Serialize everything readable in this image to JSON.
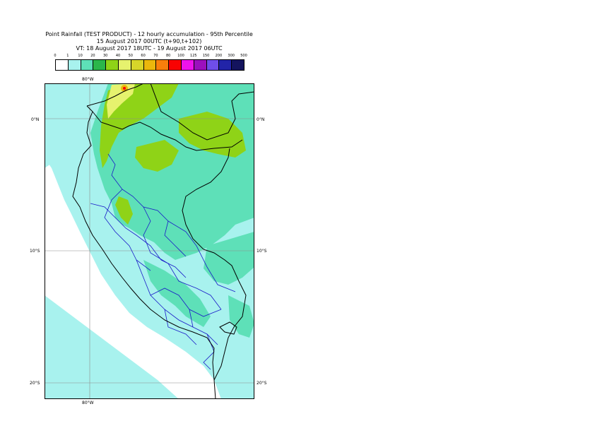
{
  "title_line1": "Point Rainfall (TEST PRODUCT) - 12 hourly accumulation - 95th Percentile",
  "title_line2": "15 August 2017 00UTC (t+90,t+102)",
  "title_line3": "VT: 18 August 2017 18UTC - 19 August 2017 06UTC",
  "legend": {
    "labels": [
      "0",
      "1",
      "10",
      "20",
      "30",
      "40",
      "50",
      "60",
      "70",
      "80",
      "100",
      "125",
      "150",
      "200",
      "300",
      "500"
    ],
    "colors": [
      "#ffffff",
      "#a8f2ee",
      "#5ee0b8",
      "#2bb64a",
      "#8fd317",
      "#e6f26e",
      "#d7d52a",
      "#ebb70c",
      "#f87f0c",
      "#f90202",
      "#ee13ec",
      "#9b10bd",
      "#6f4ee9",
      "#2224a8",
      "#14145e"
    ]
  },
  "axes": {
    "lon_top": "80°W",
    "lon_bottom": "80°W",
    "lat_left": [
      "0°N",
      "10°S",
      "20°S"
    ],
    "lat_right": [
      "0°N",
      "10°S",
      "20°S"
    ]
  },
  "map_colors": {
    "ocean": "#ffffff",
    "light": "#a8f2ee",
    "medium": "#5ee0b8",
    "green": "#8fd317",
    "yellow": "#e6f26e",
    "orange": "#ebb70c",
    "coast": "#000000",
    "regions": "#1a1ac8"
  }
}
